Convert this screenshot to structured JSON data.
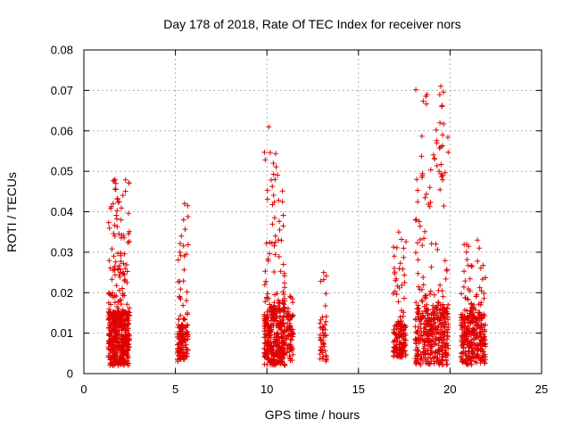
{
  "chart_data": {
    "type": "scatter",
    "title": "Day 178 of 2018, Rate Of TEC Index for receiver nors",
    "xlabel": "GPS time / hours",
    "ylabel": "ROTI / TECUs",
    "xlim": [
      0,
      25
    ],
    "ylim": [
      0,
      0.08
    ],
    "x_ticks": [
      0,
      5,
      10,
      15,
      20,
      25
    ],
    "x_tick_labels": [
      "0",
      "5",
      "10",
      "15",
      "20",
      "25"
    ],
    "y_ticks": [
      0,
      0.01,
      0.02,
      0.03,
      0.04,
      0.05,
      0.06,
      0.07,
      0.08
    ],
    "y_tick_labels": [
      "0",
      "0.01",
      "0.02",
      "0.03",
      "0.04",
      "0.05",
      "0.06",
      "0.07",
      "0.08"
    ],
    "grid": true,
    "marker": "+",
    "color": "#e00000",
    "clusters": [
      {
        "x_start": 1.35,
        "x_end": 2.5,
        "count": 520,
        "base_min": 0.002,
        "base_max": 0.015,
        "peak": 0.048
      },
      {
        "x_start": 5.1,
        "x_end": 5.7,
        "count": 140,
        "base_min": 0.003,
        "base_max": 0.012,
        "peak": 0.042
      },
      {
        "x_start": 9.85,
        "x_end": 11.0,
        "count": 380,
        "base_min": 0.002,
        "base_max": 0.016,
        "peak": 0.061
      },
      {
        "x_start": 11.05,
        "x_end": 11.45,
        "count": 70,
        "base_min": 0.003,
        "base_max": 0.014,
        "peak": 0.02
      },
      {
        "x_start": 12.9,
        "x_end": 13.25,
        "count": 45,
        "base_min": 0.003,
        "base_max": 0.012,
        "peak": 0.025
      },
      {
        "x_start": 16.9,
        "x_end": 17.6,
        "count": 150,
        "base_min": 0.004,
        "base_max": 0.012,
        "peak": 0.035
      },
      {
        "x_start": 18.1,
        "x_end": 19.9,
        "count": 420,
        "base_min": 0.002,
        "base_max": 0.016,
        "peak": 0.071
      },
      {
        "x_start": 20.6,
        "x_end": 21.95,
        "count": 330,
        "base_min": 0.002,
        "base_max": 0.014,
        "peak": 0.033
      }
    ],
    "notable_points": [
      {
        "x": 1.7,
        "y": 0.048
      },
      {
        "x": 1.75,
        "y": 0.047
      },
      {
        "x": 1.6,
        "y": 0.042
      },
      {
        "x": 5.5,
        "y": 0.042
      },
      {
        "x": 5.45,
        "y": 0.038
      },
      {
        "x": 10.1,
        "y": 0.061
      },
      {
        "x": 10.35,
        "y": 0.052
      },
      {
        "x": 10.45,
        "y": 0.048
      },
      {
        "x": 13.1,
        "y": 0.025
      },
      {
        "x": 17.2,
        "y": 0.035
      },
      {
        "x": 18.5,
        "y": 0.049
      },
      {
        "x": 19.5,
        "y": 0.071
      },
      {
        "x": 19.55,
        "y": 0.066
      },
      {
        "x": 19.45,
        "y": 0.062
      },
      {
        "x": 19.6,
        "y": 0.059
      },
      {
        "x": 19.5,
        "y": 0.056
      },
      {
        "x": 19.4,
        "y": 0.05
      },
      {
        "x": 19.6,
        "y": 0.049
      },
      {
        "x": 18.9,
        "y": 0.046
      },
      {
        "x": 21.5,
        "y": 0.033
      },
      {
        "x": 21.6,
        "y": 0.031
      }
    ]
  }
}
